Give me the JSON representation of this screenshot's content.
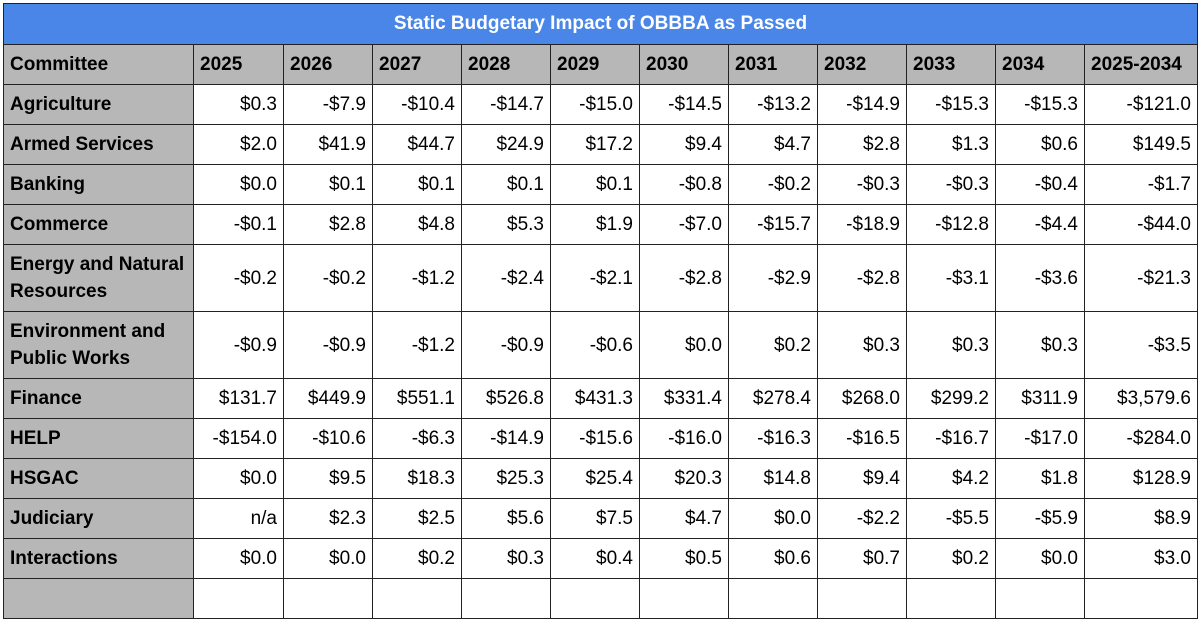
{
  "title": "Static Budgetary Impact of OBBBA as Passed",
  "table": {
    "header": [
      "Committee",
      "2025",
      "2026",
      "2027",
      "2028",
      "2029",
      "2030",
      "2031",
      "2032",
      "2033",
      "2034",
      "2025-2034"
    ],
    "rows": [
      [
        "Agriculture",
        "$0.3",
        "-$7.9",
        "-$10.4",
        "-$14.7",
        "-$15.0",
        "-$14.5",
        "-$13.2",
        "-$14.9",
        "-$15.3",
        "-$15.3",
        "-$121.0"
      ],
      [
        "Armed Services",
        "$2.0",
        "$41.9",
        "$44.7",
        "$24.9",
        "$17.2",
        "$9.4",
        "$4.7",
        "$2.8",
        "$1.3",
        "$0.6",
        "$149.5"
      ],
      [
        "Banking",
        "$0.0",
        "$0.1",
        "$0.1",
        "$0.1",
        "$0.1",
        "-$0.8",
        "-$0.2",
        "-$0.3",
        "-$0.3",
        "-$0.4",
        "-$1.7"
      ],
      [
        "Commerce",
        "-$0.1",
        "$2.8",
        "$4.8",
        "$5.3",
        "$1.9",
        "-$7.0",
        "-$15.7",
        "-$18.9",
        "-$12.8",
        "-$4.4",
        "-$44.0"
      ],
      [
        "Energy and Natural Resources",
        "-$0.2",
        "-$0.2",
        "-$1.2",
        "-$2.4",
        "-$2.1",
        "-$2.8",
        "-$2.9",
        "-$2.8",
        "-$3.1",
        "-$3.6",
        "-$21.3"
      ],
      [
        "Environment and Public Works",
        "-$0.9",
        "-$0.9",
        "-$1.2",
        "-$0.9",
        "-$0.6",
        "$0.0",
        "$0.2",
        "$0.3",
        "$0.3",
        "$0.3",
        "-$3.5"
      ],
      [
        "Finance",
        "$131.7",
        "$449.9",
        "$551.1",
        "$526.8",
        "$431.3",
        "$331.4",
        "$278.4",
        "$268.0",
        "$299.2",
        "$311.9",
        "$3,579.6"
      ],
      [
        "HELP",
        "-$154.0",
        "-$10.6",
        "-$6.3",
        "-$14.9",
        "-$15.6",
        "-$16.0",
        "-$16.3",
        "-$16.5",
        "-$16.7",
        "-$17.0",
        "-$284.0"
      ],
      [
        "HSGAC",
        "$0.0",
        "$9.5",
        "$18.3",
        "$25.3",
        "$25.4",
        "$20.3",
        "$14.8",
        "$9.4",
        "$4.2",
        "$1.8",
        "$128.9"
      ],
      [
        "Judiciary",
        "n/a",
        "$2.3",
        "$2.5",
        "$5.6",
        "$7.5",
        "$4.7",
        "$0.0",
        "-$2.2",
        "-$5.5",
        "-$5.9",
        "$8.9"
      ],
      [
        "Interactions",
        "$0.0",
        "$0.0",
        "$0.2",
        "$0.3",
        "$0.4",
        "$0.5",
        "$0.6",
        "$0.7",
        "$0.2",
        "$0.0",
        "$3.0"
      ]
    ]
  }
}
